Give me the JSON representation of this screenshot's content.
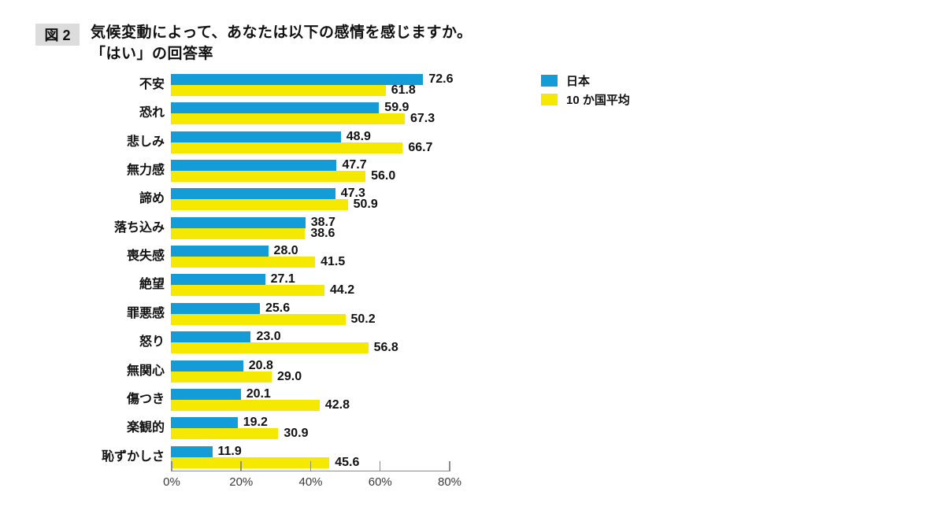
{
  "header": {
    "figure_label": "図 2",
    "title_line1": "気候変動によって、あなたは以下の感情を感じますか。",
    "title_line2": "「はい」の回答率"
  },
  "colors": {
    "japan_blue": "#149cd9",
    "average_yellow": "#f6e900",
    "figure_badge_bg": "#dcdcdc",
    "axis_gray": "#8c8c8c"
  },
  "chart_data": {
    "type": "bar",
    "orientation": "horizontal",
    "title": "気候変動によって、あなたは以下の感情を感じますか。「はい」の回答率",
    "categories": [
      "不安",
      "恐れ",
      "悲しみ",
      "無力感",
      "諦め",
      "落ち込み",
      "喪失感",
      "絶望",
      "罪悪感",
      "怒り",
      "無関心",
      "傷つき",
      "楽観的",
      "恥ずかしさ"
    ],
    "series": [
      {
        "name": "日本",
        "color": "#149cd9",
        "values": [
          72.6,
          59.9,
          48.9,
          47.7,
          47.3,
          38.7,
          28.0,
          27.1,
          25.6,
          23.0,
          20.8,
          20.1,
          19.2,
          11.9
        ]
      },
      {
        "name": "10 か国平均",
        "color": "#f6e900",
        "values": [
          61.8,
          67.3,
          66.7,
          56.0,
          50.9,
          38.6,
          41.5,
          44.2,
          50.2,
          56.8,
          29.0,
          42.8,
          30.9,
          45.6
        ]
      }
    ],
    "xticks": [
      "0%",
      "20%",
      "40%",
      "60%",
      "80%"
    ],
    "xlim": [
      0,
      80
    ],
    "value_labels": true,
    "grid": false,
    "legend_position": "top-right"
  }
}
